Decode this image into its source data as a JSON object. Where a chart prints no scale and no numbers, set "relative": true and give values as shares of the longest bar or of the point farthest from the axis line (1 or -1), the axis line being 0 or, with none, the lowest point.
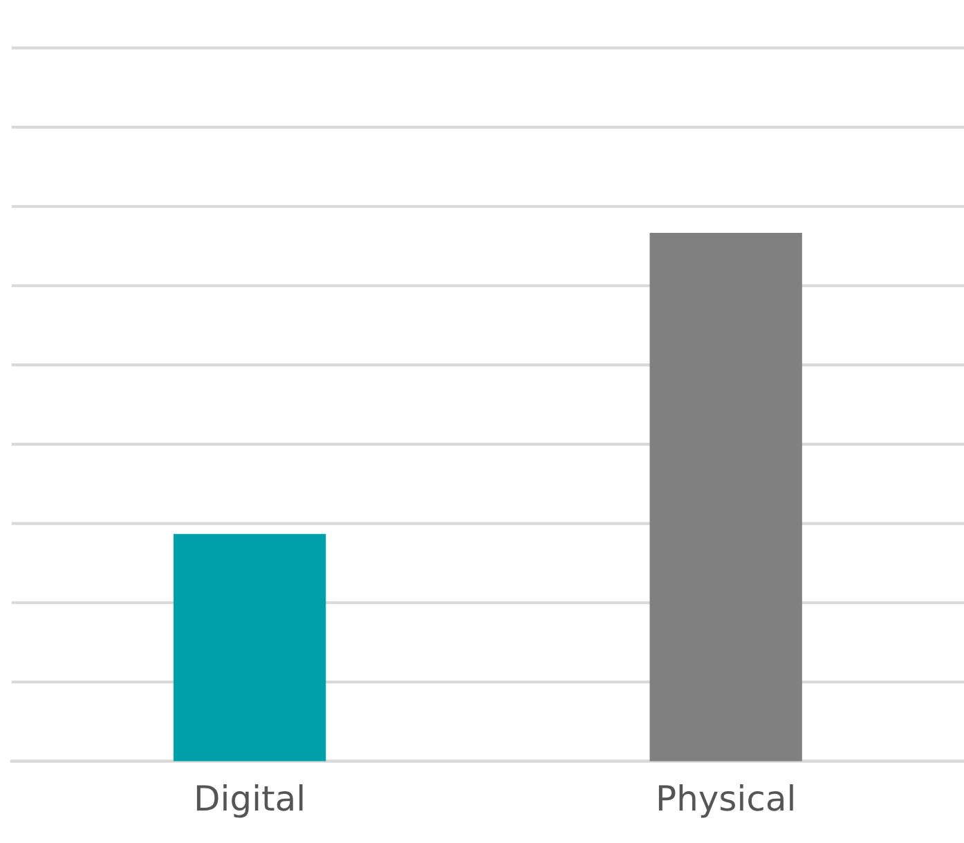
{
  "chart_data": {
    "type": "bar",
    "categories": [
      "Digital",
      "Physical"
    ],
    "values": [
      0.43,
      1
    ],
    "colors": [
      "#00a0ab",
      "#808080"
    ],
    "relative": true,
    "grid": "y"
  }
}
